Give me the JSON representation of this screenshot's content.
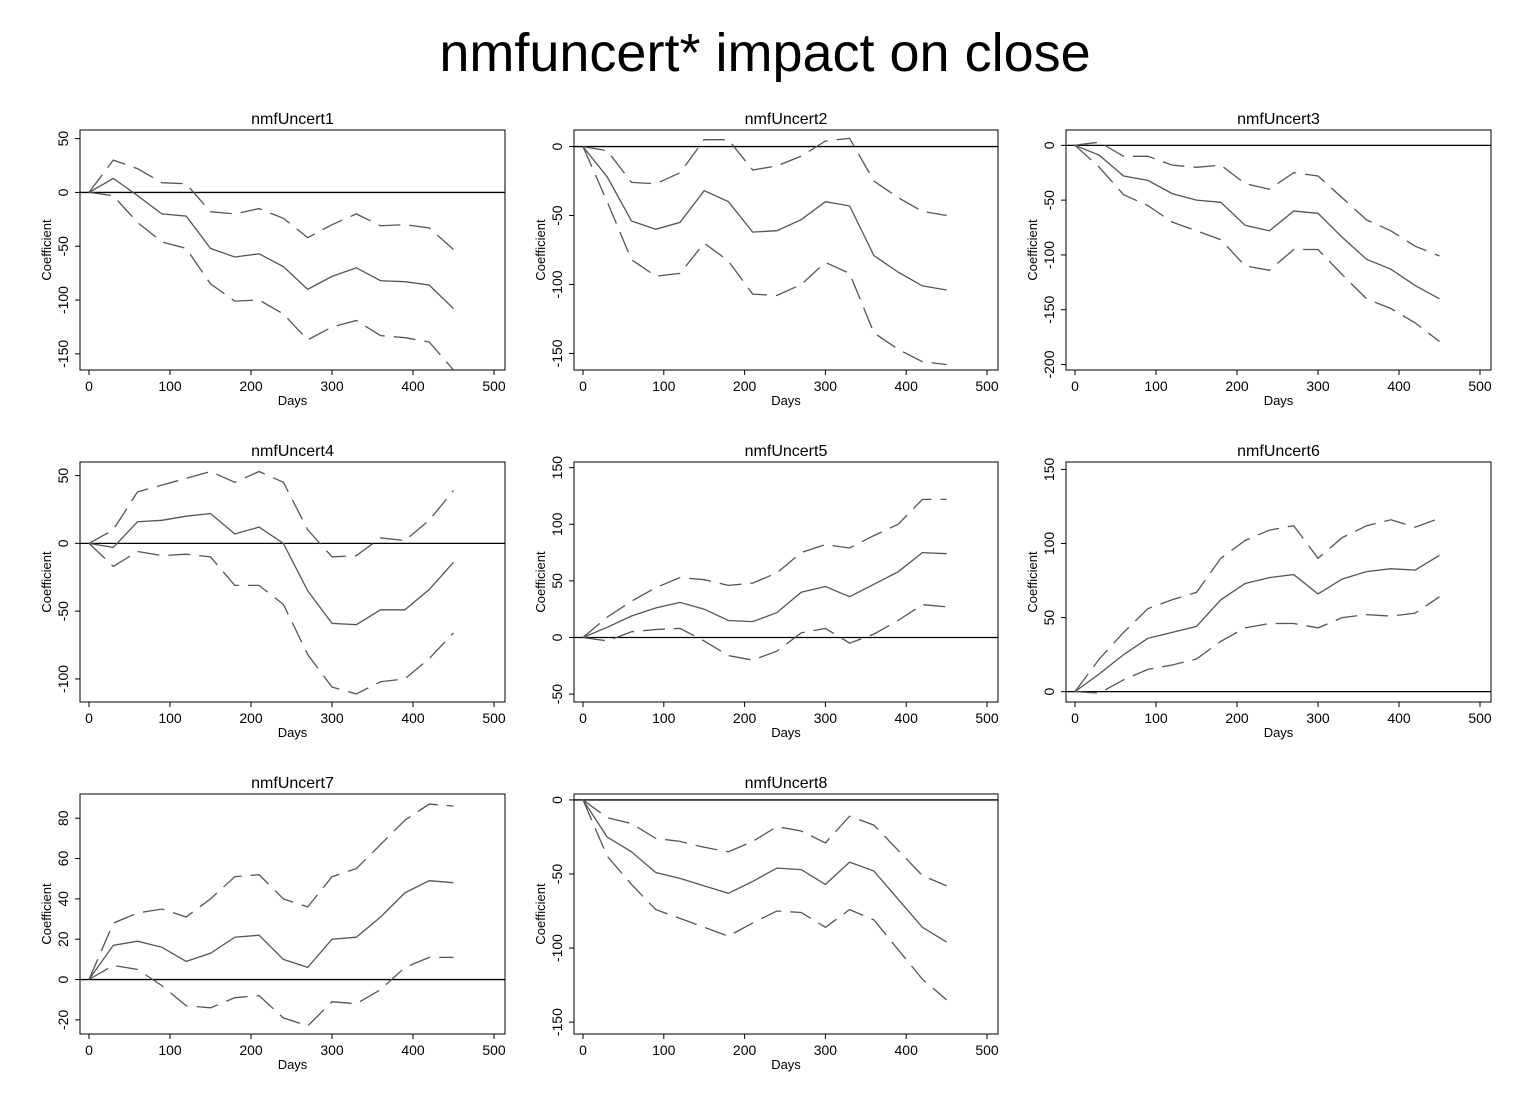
{
  "figure_title": "nmfuncert* impact on close",
  "line_color": "#555555",
  "chart_data": [
    {
      "type": "line",
      "title": "nmfUncert1",
      "xlabel": "Days",
      "ylabel": "Coefficient",
      "xlim": [
        0,
        500
      ],
      "ylim": [
        -165,
        58
      ],
      "xticks": [
        0,
        100,
        200,
        300,
        400,
        500
      ],
      "yticks": [
        50,
        0,
        -50,
        -100,
        -150
      ],
      "x": [
        0,
        30,
        60,
        90,
        120,
        150,
        180,
        210,
        240,
        270,
        300,
        330,
        360,
        390,
        420,
        450
      ],
      "series": [
        {
          "role": "estimate",
          "values": [
            0,
            13,
            -3,
            -20,
            -22,
            -52,
            -60,
            -57,
            -69,
            -90,
            -78,
            -70,
            -82,
            -83,
            -86,
            -108
          ]
        },
        {
          "role": "upper",
          "values": [
            0,
            30,
            22,
            9,
            8,
            -18,
            -20,
            -15,
            -24,
            -42,
            -30,
            -20,
            -31,
            -30,
            -33,
            -53
          ]
        },
        {
          "role": "lower",
          "values": [
            0,
            -3,
            -28,
            -46,
            -52,
            -85,
            -101,
            -100,
            -113,
            -137,
            -125,
            -119,
            -133,
            -135,
            -139,
            -165
          ]
        }
      ],
      "reference_line": 0
    },
    {
      "type": "line",
      "title": "nmfUncert2",
      "xlabel": "Days",
      "ylabel": "Coefficient",
      "xlim": [
        0,
        500
      ],
      "ylim": [
        -162,
        12
      ],
      "xticks": [
        0,
        100,
        200,
        300,
        400,
        500
      ],
      "yticks": [
        0,
        -50,
        -100,
        -150
      ],
      "x": [
        0,
        30,
        60,
        90,
        120,
        150,
        180,
        210,
        240,
        270,
        300,
        330,
        360,
        390,
        420,
        450
      ],
      "series": [
        {
          "role": "estimate",
          "values": [
            0,
            -22,
            -54,
            -60,
            -55,
            -32,
            -40,
            -62,
            -61,
            -53,
            -40,
            -43,
            -79,
            -91,
            -101,
            -104
          ]
        },
        {
          "role": "upper",
          "values": [
            0,
            -3,
            -26,
            -27,
            -19,
            5,
            5,
            -17,
            -14,
            -7,
            4,
            6,
            -25,
            -37,
            -47,
            -50
          ]
        },
        {
          "role": "lower",
          "values": [
            0,
            -40,
            -82,
            -94,
            -92,
            -70,
            -83,
            -107,
            -108,
            -100,
            -84,
            -92,
            -135,
            -147,
            -156,
            -158
          ]
        }
      ],
      "reference_line": 0
    },
    {
      "type": "line",
      "title": "nmfUncert3",
      "xlabel": "Days",
      "ylabel": "Coefficient",
      "xlim": [
        0,
        500
      ],
      "ylim": [
        -205,
        14
      ],
      "xticks": [
        0,
        100,
        200,
        300,
        400,
        500
      ],
      "yticks": [
        0,
        -50,
        -100,
        -150,
        -200
      ],
      "x": [
        0,
        30,
        60,
        90,
        120,
        150,
        180,
        210,
        240,
        270,
        300,
        330,
        360,
        390,
        420,
        450
      ],
      "series": [
        {
          "role": "estimate",
          "values": [
            0,
            -9,
            -28,
            -32,
            -44,
            -50,
            -52,
            -73,
            -78,
            -60,
            -62,
            -84,
            -104,
            -113,
            -128,
            -140
          ]
        },
        {
          "role": "upper",
          "values": [
            0,
            3,
            -10,
            -10,
            -18,
            -20,
            -18,
            -35,
            -40,
            -25,
            -28,
            -48,
            -68,
            -78,
            -92,
            -101
          ]
        },
        {
          "role": "lower",
          "values": [
            0,
            -20,
            -45,
            -55,
            -70,
            -78,
            -86,
            -110,
            -114,
            -95,
            -95,
            -118,
            -140,
            -149,
            -162,
            -179
          ]
        }
      ],
      "reference_line": 0
    },
    {
      "type": "line",
      "title": "nmfUncert4",
      "xlabel": "Days",
      "ylabel": "Coefficient",
      "xlim": [
        0,
        500
      ],
      "ylim": [
        -117,
        60
      ],
      "xticks": [
        0,
        100,
        200,
        300,
        400,
        500
      ],
      "yticks": [
        50,
        0,
        -50,
        -100
      ],
      "x": [
        0,
        30,
        60,
        90,
        120,
        150,
        180,
        210,
        240,
        270,
        300,
        330,
        360,
        390,
        420,
        450
      ],
      "series": [
        {
          "role": "estimate",
          "values": [
            0,
            -3,
            16,
            17,
            20,
            22,
            7,
            12,
            0,
            -35,
            -59,
            -60,
            -49,
            -49,
            -34,
            -14
          ]
        },
        {
          "role": "upper",
          "values": [
            0,
            10,
            38,
            43,
            48,
            53,
            45,
            53,
            45,
            10,
            -10,
            -9,
            4,
            2,
            17,
            39
          ]
        },
        {
          "role": "lower",
          "values": [
            0,
            -17,
            -6,
            -9,
            -8,
            -10,
            -31,
            -31,
            -45,
            -82,
            -106,
            -111,
            -102,
            -100,
            -85,
            -66
          ]
        }
      ],
      "reference_line": 0
    },
    {
      "type": "line",
      "title": "nmfUncert5",
      "xlabel": "Days",
      "ylabel": "Coefficient",
      "xlim": [
        0,
        500
      ],
      "ylim": [
        -57,
        155
      ],
      "xticks": [
        0,
        100,
        200,
        300,
        400,
        500
      ],
      "yticks": [
        150,
        100,
        50,
        0,
        -50
      ],
      "x": [
        0,
        30,
        60,
        90,
        120,
        150,
        180,
        210,
        240,
        270,
        300,
        330,
        360,
        390,
        420,
        450
      ],
      "series": [
        {
          "role": "estimate",
          "values": [
            0,
            9,
            19,
            26,
            31,
            25,
            15,
            14,
            22,
            40,
            45,
            36,
            47,
            58,
            75,
            74
          ]
        },
        {
          "role": "upper",
          "values": [
            0,
            18,
            32,
            44,
            53,
            51,
            46,
            48,
            57,
            75,
            82,
            79,
            90,
            100,
            122,
            122
          ]
        },
        {
          "role": "lower",
          "values": [
            0,
            -3,
            5,
            7,
            8,
            -3,
            -16,
            -20,
            -12,
            4,
            8,
            -5,
            3,
            15,
            29,
            27
          ]
        }
      ],
      "reference_line": 0
    },
    {
      "type": "line",
      "title": "nmfUncert6",
      "xlabel": "Days",
      "ylabel": "Coefficient",
      "xlim": [
        0,
        500
      ],
      "ylim": [
        -7,
        155
      ],
      "xticks": [
        0,
        100,
        200,
        300,
        400,
        500
      ],
      "yticks": [
        150,
        100,
        50,
        0
      ],
      "x": [
        0,
        30,
        60,
        90,
        120,
        150,
        180,
        210,
        240,
        270,
        300,
        330,
        360,
        390,
        420,
        450
      ],
      "series": [
        {
          "role": "estimate",
          "values": [
            0,
            12,
            25,
            36,
            40,
            44,
            62,
            73,
            77,
            79,
            66,
            76,
            81,
            83,
            82,
            92
          ]
        },
        {
          "role": "upper",
          "values": [
            0,
            22,
            40,
            56,
            62,
            67,
            90,
            102,
            109,
            112,
            90,
            104,
            112,
            116,
            111,
            117
          ]
        },
        {
          "role": "lower",
          "values": [
            0,
            -1,
            8,
            15,
            18,
            22,
            34,
            43,
            46,
            46,
            43,
            50,
            52,
            51,
            53,
            64
          ]
        }
      ],
      "reference_line": 0
    },
    {
      "type": "line",
      "title": "nmfUncert7",
      "xlabel": "Days",
      "ylabel": "Coefficient",
      "xlim": [
        0,
        500
      ],
      "ylim": [
        -27,
        92
      ],
      "xticks": [
        0,
        100,
        200,
        300,
        400,
        500
      ],
      "yticks": [
        80,
        60,
        40,
        20,
        0,
        -20
      ],
      "x": [
        0,
        30,
        60,
        90,
        120,
        150,
        180,
        210,
        240,
        270,
        300,
        330,
        360,
        390,
        420,
        450
      ],
      "series": [
        {
          "role": "estimate",
          "values": [
            0,
            17,
            19,
            16,
            9,
            13,
            21,
            22,
            10,
            6,
            20,
            21,
            31,
            43,
            49,
            48
          ]
        },
        {
          "role": "upper",
          "values": [
            0,
            28,
            33,
            35,
            31,
            40,
            51,
            52,
            40,
            36,
            51,
            55,
            67,
            79,
            87,
            86
          ]
        },
        {
          "role": "lower",
          "values": [
            0,
            7,
            5,
            -3,
            -13,
            -14,
            -9,
            -8,
            -19,
            -23,
            -11,
            -12,
            -5,
            6,
            11,
            11
          ]
        }
      ],
      "reference_line": 0
    },
    {
      "type": "line",
      "title": "nmfUncert8",
      "xlabel": "Days",
      "ylabel": "Coefficient",
      "xlim": [
        0,
        500
      ],
      "ylim": [
        -158,
        4
      ],
      "xticks": [
        0,
        100,
        200,
        300,
        400,
        500
      ],
      "yticks": [
        0,
        -50,
        -100,
        -150
      ],
      "x": [
        0,
        30,
        60,
        90,
        120,
        150,
        180,
        210,
        240,
        270,
        300,
        330,
        360,
        390,
        420,
        450
      ],
      "series": [
        {
          "role": "estimate",
          "values": [
            0,
            -25,
            -35,
            -49,
            -53,
            -58,
            -63,
            -55,
            -46,
            -47,
            -57,
            -42,
            -48,
            -67,
            -86,
            -96
          ]
        },
        {
          "role": "upper",
          "values": [
            0,
            -12,
            -16,
            -26,
            -28,
            -32,
            -35,
            -28,
            -18,
            -21,
            -29,
            -11,
            -17,
            -34,
            -51,
            -58
          ]
        },
        {
          "role": "lower",
          "values": [
            0,
            -38,
            -57,
            -74,
            -80,
            -86,
            -92,
            -83,
            -75,
            -76,
            -86,
            -74,
            -81,
            -101,
            -121,
            -135
          ]
        }
      ],
      "reference_line": 0
    }
  ]
}
